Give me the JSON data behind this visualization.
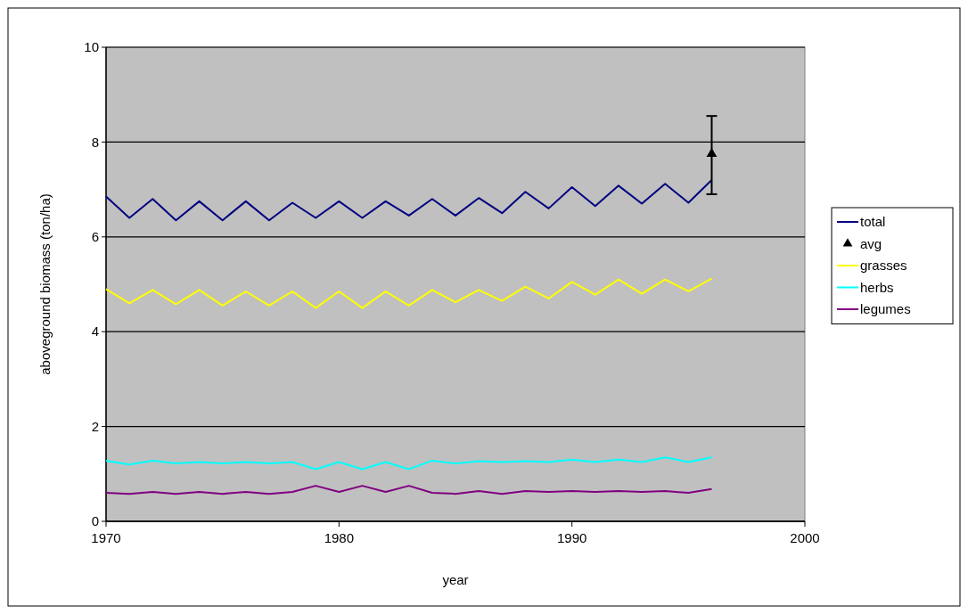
{
  "chart_data": {
    "type": "line",
    "xlabel": "year",
    "ylabel": "aboveground biomass (ton/ha)",
    "x": [
      1970,
      1971,
      1972,
      1973,
      1974,
      1975,
      1976,
      1977,
      1978,
      1979,
      1980,
      1981,
      1982,
      1983,
      1984,
      1985,
      1986,
      1987,
      1988,
      1989,
      1990,
      1991,
      1992,
      1993,
      1994,
      1995,
      1996
    ],
    "series": [
      {
        "name": "total",
        "color": "#000080",
        "values": [
          6.85,
          6.4,
          6.8,
          6.35,
          6.75,
          6.35,
          6.75,
          6.35,
          6.72,
          6.4,
          6.75,
          6.4,
          6.75,
          6.45,
          6.8,
          6.45,
          6.82,
          6.5,
          6.95,
          6.6,
          7.05,
          6.65,
          7.08,
          6.7,
          7.12,
          6.72,
          7.2
        ]
      },
      {
        "name": "avg",
        "type": "scatter",
        "marker": "triangle",
        "color": "#000000",
        "x": [
          1996
        ],
        "values": [
          7.75
        ],
        "errors": [
          [
            6.9,
            8.55
          ]
        ]
      },
      {
        "name": "grasses",
        "color": "#ffff00",
        "values": [
          4.9,
          4.6,
          4.88,
          4.58,
          4.88,
          4.55,
          4.85,
          4.55,
          4.85,
          4.5,
          4.85,
          4.5,
          4.85,
          4.55,
          4.88,
          4.62,
          4.88,
          4.65,
          4.95,
          4.7,
          5.05,
          4.78,
          5.1,
          4.8,
          5.1,
          4.85,
          5.12
        ]
      },
      {
        "name": "herbs",
        "color": "#00ffff",
        "values": [
          1.28,
          1.2,
          1.28,
          1.22,
          1.25,
          1.22,
          1.25,
          1.22,
          1.25,
          1.1,
          1.25,
          1.1,
          1.25,
          1.1,
          1.28,
          1.22,
          1.27,
          1.25,
          1.27,
          1.25,
          1.3,
          1.25,
          1.3,
          1.25,
          1.35,
          1.25,
          1.35
        ]
      },
      {
        "name": "legumes",
        "color": "#800080",
        "values": [
          0.6,
          0.58,
          0.62,
          0.58,
          0.62,
          0.58,
          0.62,
          0.58,
          0.62,
          0.75,
          0.62,
          0.75,
          0.62,
          0.75,
          0.6,
          0.58,
          0.64,
          0.58,
          0.64,
          0.62,
          0.64,
          0.62,
          0.64,
          0.62,
          0.64,
          0.6,
          0.68
        ]
      }
    ],
    "xlim": [
      1970,
      2000
    ],
    "xticks": [
      1970,
      1980,
      1990,
      2000
    ],
    "ylim": [
      0,
      10
    ],
    "yticks": [
      0,
      2,
      4,
      6,
      8,
      10
    ],
    "grid": "y",
    "legend": "right",
    "marker": "none",
    "line_style": "solid"
  }
}
